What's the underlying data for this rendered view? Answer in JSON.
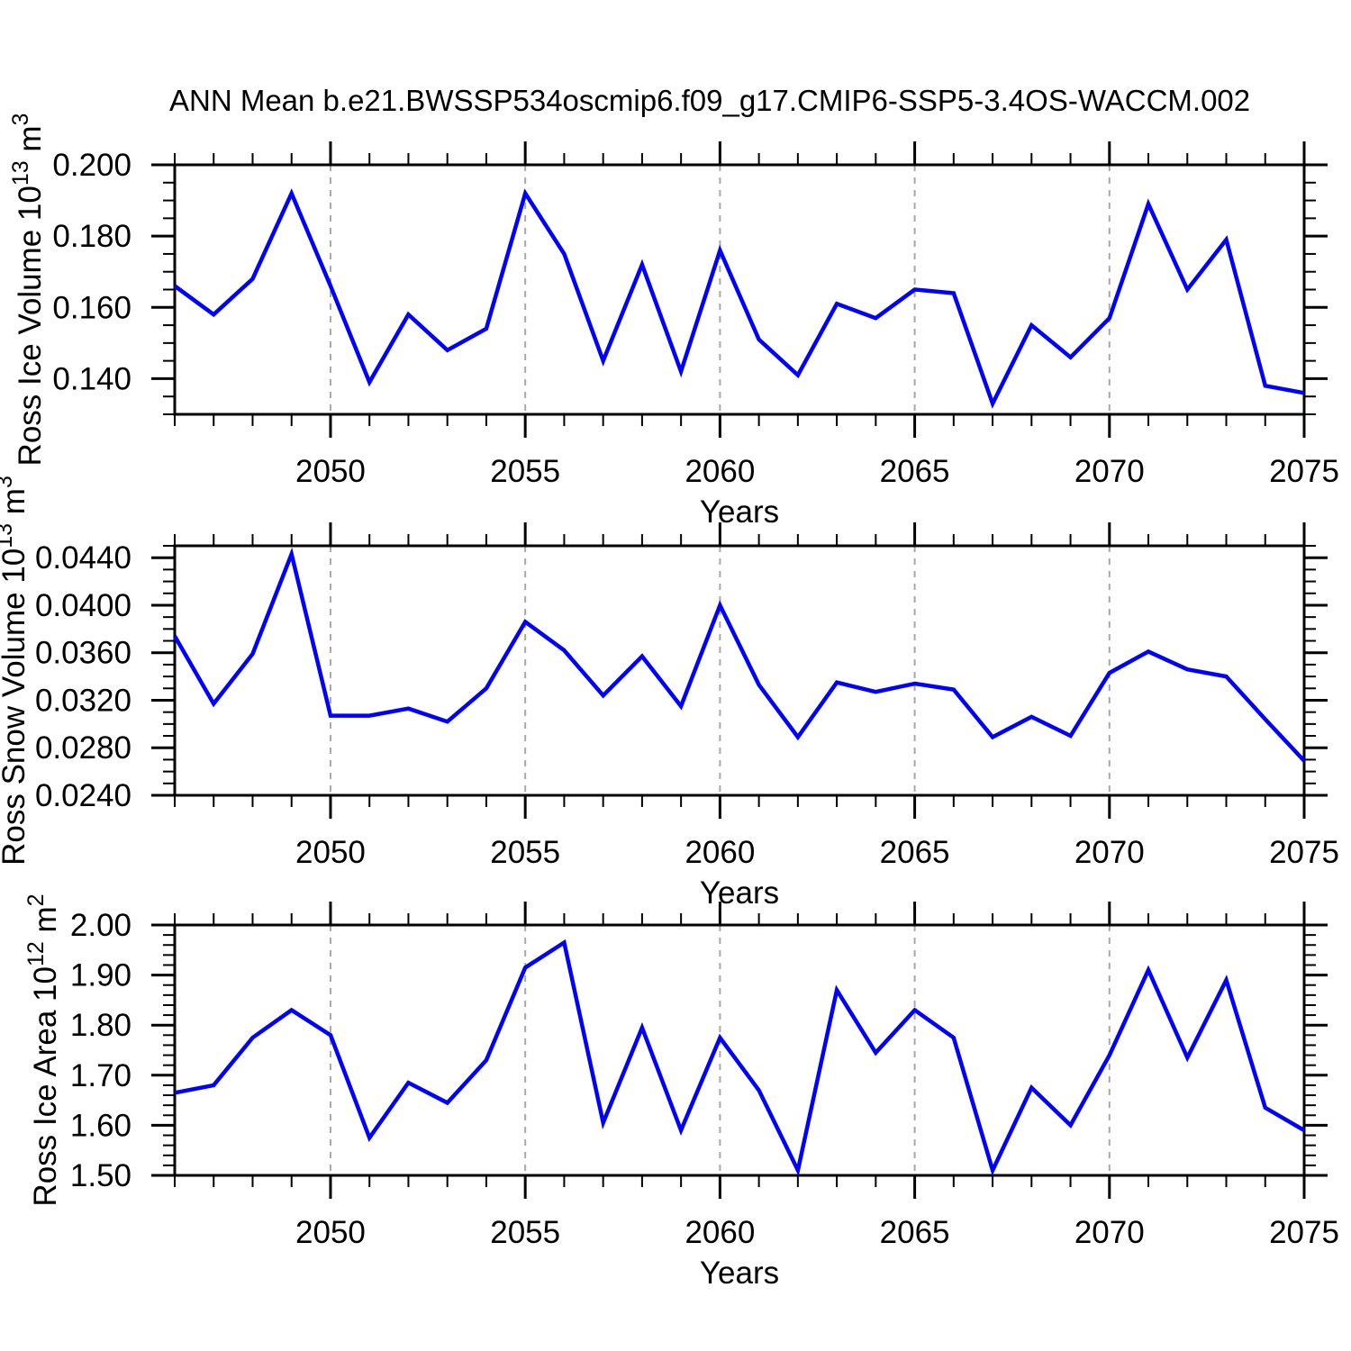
{
  "title": "ANN Mean b.e21.BWSSP534oscmip6.f09_g17.CMIP6-SSP5-3.4OS-WACCM.002",
  "colors": {
    "line": "#0000ff",
    "axis": "#000000",
    "grid": "#a8a8a8",
    "background": "#ffffff"
  },
  "chart_data": [
    {
      "type": "line",
      "id": "ross-ice-volume",
      "ylabel_plain": "Ross Ice Volume 10^13 m^3",
      "ylabel_parts": [
        {
          "t": "Ross Ice Volume 10"
        },
        {
          "t": "13",
          "sup": true
        },
        {
          "t": " m"
        },
        {
          "t": "3",
          "sup": true
        }
      ],
      "xlabel": "Years",
      "x": [
        2046,
        2047,
        2048,
        2049,
        2050,
        2051,
        2052,
        2053,
        2054,
        2055,
        2056,
        2057,
        2058,
        2059,
        2060,
        2061,
        2062,
        2063,
        2064,
        2065,
        2066,
        2067,
        2068,
        2069,
        2070,
        2071,
        2072,
        2073,
        2074,
        2075
      ],
      "series": [
        {
          "name": "Ross Ice Volume",
          "values": [
            0.166,
            0.158,
            0.168,
            0.192,
            0.166,
            0.139,
            0.158,
            0.148,
            0.154,
            0.192,
            0.175,
            0.145,
            0.172,
            0.142,
            0.176,
            0.151,
            0.141,
            0.161,
            0.157,
            0.165,
            0.164,
            0.133,
            0.155,
            0.146,
            0.157,
            0.189,
            0.165,
            0.179,
            0.138,
            0.136
          ]
        }
      ],
      "xlim": [
        2046,
        2075
      ],
      "ylim": [
        0.13,
        0.2
      ],
      "xticks": [
        2050,
        2055,
        2060,
        2065,
        2070,
        2075
      ],
      "xtick_labels": [
        "2050",
        "2055",
        "2060",
        "2065",
        "2070",
        "2075"
      ],
      "xminor_step": 1,
      "yticks": [
        0.14,
        0.16,
        0.18,
        0.2
      ],
      "ytick_labels": [
        "0.140",
        "0.160",
        "0.180",
        "0.200"
      ],
      "yminor_step": 0.005,
      "grid_x": [
        2050,
        2055,
        2060,
        2065,
        2070
      ],
      "grid": "vertical-dashed"
    },
    {
      "type": "line",
      "id": "ross-snow-volume",
      "ylabel_plain": "Ross Snow Volume 10^13 m^3",
      "ylabel_parts": [
        {
          "t": "Ross Snow Volume 10"
        },
        {
          "t": "13",
          "sup": true
        },
        {
          "t": " m"
        },
        {
          "t": "3",
          "sup": true
        }
      ],
      "xlabel": "Years",
      "x": [
        2046,
        2047,
        2048,
        2049,
        2050,
        2051,
        2052,
        2053,
        2054,
        2055,
        2056,
        2057,
        2058,
        2059,
        2060,
        2061,
        2062,
        2063,
        2064,
        2065,
        2066,
        2067,
        2068,
        2069,
        2070,
        2071,
        2072,
        2073,
        2074,
        2075
      ],
      "series": [
        {
          "name": "Ross Snow Volume",
          "values": [
            0.0374,
            0.0317,
            0.0359,
            0.0443,
            0.0307,
            0.0307,
            0.0313,
            0.0302,
            0.033,
            0.0386,
            0.0362,
            0.0324,
            0.0357,
            0.0315,
            0.04,
            0.0333,
            0.0289,
            0.0335,
            0.0327,
            0.0334,
            0.0329,
            0.0289,
            0.0306,
            0.029,
            0.0343,
            0.0361,
            0.0346,
            0.034,
            0.0304,
            0.0269
          ]
        }
      ],
      "xlim": [
        2046,
        2075
      ],
      "ylim": [
        0.024,
        0.045
      ],
      "xticks": [
        2050,
        2055,
        2060,
        2065,
        2070,
        2075
      ],
      "xtick_labels": [
        "2050",
        "2055",
        "2060",
        "2065",
        "2070",
        "2075"
      ],
      "xminor_step": 1,
      "yticks": [
        0.024,
        0.028,
        0.032,
        0.036,
        0.04,
        0.044
      ],
      "ytick_labels": [
        "0.0240",
        "0.0280",
        "0.0320",
        "0.0360",
        "0.0400",
        "0.0440"
      ],
      "yminor_step": 0.001,
      "grid_x": [
        2050,
        2055,
        2060,
        2065,
        2070
      ],
      "grid": "vertical-dashed"
    },
    {
      "type": "line",
      "id": "ross-ice-area",
      "ylabel_plain": "Ross Ice Area 10^12 m^2",
      "ylabel_parts": [
        {
          "t": "Ross Ice Area 10"
        },
        {
          "t": "12",
          "sup": true
        },
        {
          "t": " m"
        },
        {
          "t": "2",
          "sup": true
        }
      ],
      "xlabel": "Years",
      "x": [
        2046,
        2047,
        2048,
        2049,
        2050,
        2051,
        2052,
        2053,
        2054,
        2055,
        2056,
        2057,
        2058,
        2059,
        2060,
        2061,
        2062,
        2063,
        2064,
        2065,
        2066,
        2067,
        2068,
        2069,
        2070,
        2071,
        2072,
        2073,
        2074,
        2075
      ],
      "series": [
        {
          "name": "Ross Ice Area",
          "values": [
            1.665,
            1.68,
            1.775,
            1.83,
            1.78,
            1.575,
            1.685,
            1.645,
            1.73,
            1.915,
            1.965,
            1.605,
            1.795,
            1.59,
            1.775,
            1.67,
            1.51,
            1.87,
            1.745,
            1.83,
            1.775,
            1.51,
            1.675,
            1.6,
            1.74,
            1.91,
            1.735,
            1.89,
            1.635,
            1.59
          ]
        }
      ],
      "xlim": [
        2046,
        2075
      ],
      "ylim": [
        1.5,
        2.0
      ],
      "xticks": [
        2050,
        2055,
        2060,
        2065,
        2070,
        2075
      ],
      "xtick_labels": [
        "2050",
        "2055",
        "2060",
        "2065",
        "2070",
        "2075"
      ],
      "xminor_step": 1,
      "yticks": [
        1.5,
        1.6,
        1.7,
        1.8,
        1.9,
        2.0
      ],
      "ytick_labels": [
        "1.50",
        "1.60",
        "1.70",
        "1.80",
        "1.90",
        "2.00"
      ],
      "yminor_step": 0.02,
      "grid_x": [
        2050,
        2055,
        2060,
        2065,
        2070
      ],
      "grid": "vertical-dashed"
    }
  ]
}
